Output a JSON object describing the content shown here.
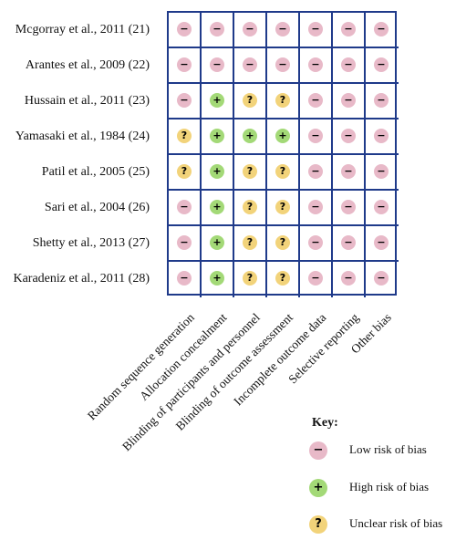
{
  "studies": [
    "Mcgorray et al., 2011 (21)",
    "Arantes et al., 2009 (22)",
    "Hussain et al., 2011 (23)",
    "Yamasaki et al., 1984 (24)",
    "Patil et al., 2005 (25)",
    "Sari et al., 2004 (26)",
    "Shetty et al., 2013 (27)",
    "Karadeniz et al., 2011 (28)"
  ],
  "domains": [
    "Random sequence generation",
    "Allocation concealment",
    "Blinding of participants and personnel",
    "Blinding of outcome assessment",
    "Incomplete outcome data",
    "Selective reporting",
    "Other bias"
  ],
  "judgements": [
    [
      "low",
      "low",
      "low",
      "low",
      "low",
      "low",
      "low"
    ],
    [
      "low",
      "low",
      "low",
      "low",
      "low",
      "low",
      "low"
    ],
    [
      "low",
      "high",
      "unclear",
      "unclear",
      "low",
      "low",
      "low"
    ],
    [
      "unclear",
      "high",
      "high",
      "high",
      "low",
      "low",
      "low"
    ],
    [
      "unclear",
      "high",
      "unclear",
      "unclear",
      "low",
      "low",
      "low"
    ],
    [
      "low",
      "high",
      "unclear",
      "unclear",
      "low",
      "low",
      "low"
    ],
    [
      "low",
      "high",
      "unclear",
      "unclear",
      "low",
      "low",
      "low"
    ],
    [
      "low",
      "high",
      "unclear",
      "unclear",
      "low",
      "low",
      "low"
    ]
  ],
  "symbols": {
    "low": "−",
    "high": "+",
    "unclear": "?"
  },
  "colors": {
    "grid": "#1f3a8a",
    "low": "#e8b9c8",
    "high": "#a3d977",
    "unclear": "#f2d37a"
  },
  "key": {
    "title": "Key:",
    "items": [
      {
        "level": "low",
        "label": "Low risk of bias"
      },
      {
        "level": "high",
        "label": "High risk of bias"
      },
      {
        "level": "unclear",
        "label": "Unclear risk of bias"
      }
    ]
  }
}
